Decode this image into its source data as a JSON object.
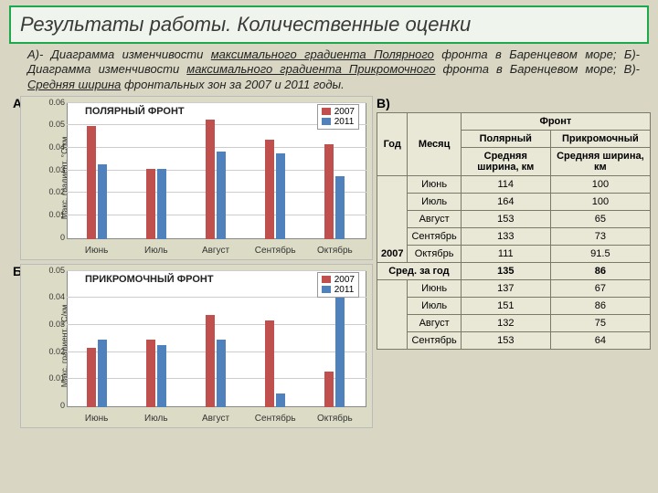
{
  "title": "Результаты работы. Количественные оценки",
  "description_parts": {
    "a_pre": "А)- Диаграмма изменчивости ",
    "a_u": "максимального градиента Полярного",
    "a_post": " фронта в Баренцевом море; Б)- Диаграмма изменчивости ",
    "b_u": "максимального градиента Прикромочного",
    "b_post": " фронта в Баренцевом море; В)- ",
    "c_u": "Средняя ширина",
    "c_post": " фронтальных зон за 2007 и 2011 годы."
  },
  "labels": {
    "a": "А)",
    "b": "Б)",
    "v": "В)"
  },
  "legend": {
    "s1": "2007",
    "s2": "2011"
  },
  "colors": {
    "s1": "#c0504d",
    "s2": "#4f81bd",
    "grid": "#cccccc",
    "panel": "#dcdcc6",
    "plot_bg": "#ffffff",
    "table_bg": "#e9e7d6"
  },
  "months": [
    "Июнь",
    "Июль",
    "Август",
    "Сентябрь",
    "Октябрь"
  ],
  "chartA": {
    "title": "ПОЛЯРНЫЙ ФРОНТ",
    "ylabel": "Макс. градиент, °С/км",
    "ymax": 0.06,
    "ytick_step": 0.01,
    "s2007": [
      0.05,
      0.031,
      0.053,
      0.044,
      0.042
    ],
    "s2011": [
      0.033,
      0.031,
      0.039,
      0.038,
      0.028
    ]
  },
  "chartB": {
    "title": "ПРИКРОМОЧНЫЙ ФРОНТ",
    "ylabel": "Макс. градиент, °С/км",
    "ymax": 0.05,
    "ytick_step": 0.01,
    "s2007": [
      0.022,
      0.025,
      0.034,
      0.032,
      0.013
    ],
    "s2011": [
      0.025,
      0.023,
      0.025,
      0.005,
      0.048
    ]
  },
  "table": {
    "headers": {
      "year": "Год",
      "month": "Месяц",
      "front": "Фронт",
      "polar": "Полярный",
      "edge": "Прикромочный",
      "width": "Средняя ширина, км"
    },
    "avg_label": "Сред. за год",
    "years": [
      {
        "year": "2007",
        "rows": [
          {
            "m": "Июнь",
            "p": 114,
            "e": 100
          },
          {
            "m": "Июль",
            "p": 164,
            "e": 100
          },
          {
            "m": "Август",
            "p": 153,
            "e": 65
          },
          {
            "m": "Сентябрь",
            "p": 133,
            "e": 73
          },
          {
            "m": "Октябрь",
            "p": 111,
            "e": 91.5
          }
        ],
        "avg_p": 135,
        "avg_e": 86
      },
      {
        "year": "",
        "rows": [
          {
            "m": "Июнь",
            "p": 137,
            "e": 67
          },
          {
            "m": "Июль",
            "p": 151,
            "e": 86
          },
          {
            "m": "Август",
            "p": 132,
            "e": 75
          },
          {
            "m": "Сентябрь",
            "p": 153,
            "e": 64
          }
        ]
      }
    ]
  }
}
